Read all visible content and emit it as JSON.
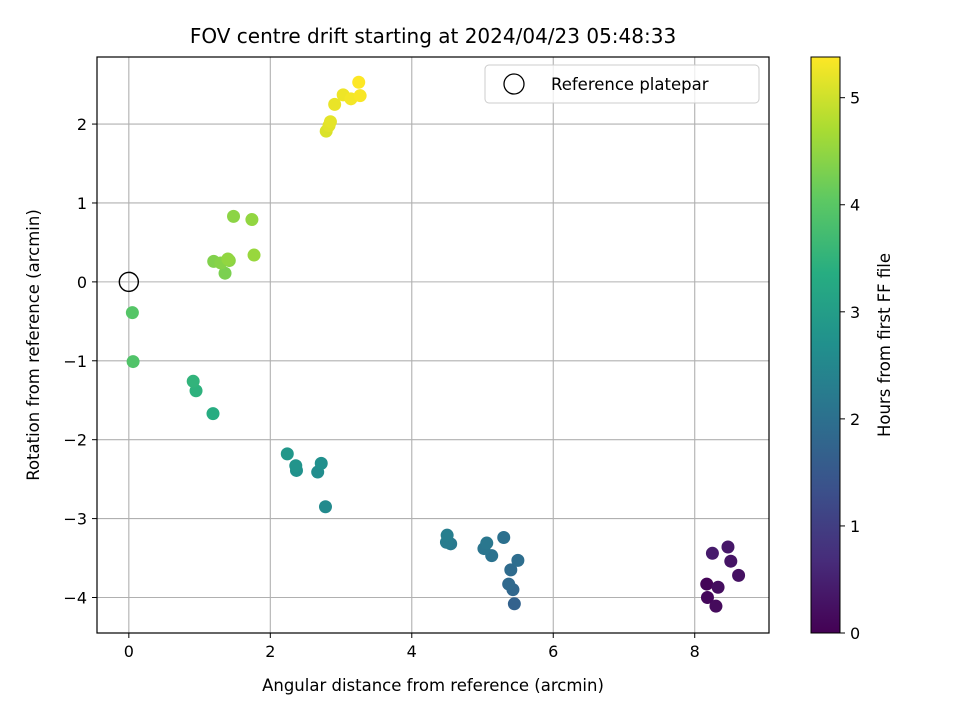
{
  "chart_data": {
    "type": "scatter",
    "title": "FOV centre drift starting at 2024/04/23 05:48:33",
    "xlabel": "Angular distance from reference (arcmin)",
    "ylabel": "Rotation from reference (arcmin)",
    "xlim": [
      -0.45,
      9.05
    ],
    "ylim": [
      -4.45,
      2.85
    ],
    "xticks": [
      0,
      2,
      4,
      6,
      8
    ],
    "yticks": [
      -4,
      -3,
      -2,
      -1,
      0,
      1,
      2
    ],
    "xtick_labels": [
      "0",
      "2",
      "4",
      "6",
      "8"
    ],
    "ytick_labels": [
      "−4",
      "−3",
      "−2",
      "−1",
      "0",
      "1",
      "2"
    ],
    "grid": true,
    "colormap": "viridis",
    "colorbar": {
      "label": "Hours from first FF file",
      "range": [
        0,
        5.38
      ],
      "ticks": [
        0,
        1,
        2,
        3,
        4,
        5
      ],
      "tick_labels": [
        "0",
        "1",
        "2",
        "3",
        "4",
        "5"
      ]
    },
    "legend": {
      "position": "top-right",
      "entries": [
        {
          "label": "Reference platepar",
          "marker": "open-circle"
        }
      ]
    },
    "reference_point": {
      "x": 0,
      "y": 0
    },
    "points": [
      {
        "x": 8.17,
        "y": -3.83,
        "t": 0.05
      },
      {
        "x": 8.18,
        "y": -4.0,
        "t": 0.1
      },
      {
        "x": 8.3,
        "y": -4.11,
        "t": 0.15
      },
      {
        "x": 8.33,
        "y": -3.87,
        "t": 0.2
      },
      {
        "x": 8.62,
        "y": -3.72,
        "t": 0.25
      },
      {
        "x": 8.51,
        "y": -3.54,
        "t": 0.3
      },
      {
        "x": 8.47,
        "y": -3.36,
        "t": 0.35
      },
      {
        "x": 8.25,
        "y": -3.44,
        "t": 0.4
      },
      {
        "x": 5.45,
        "y": -4.08,
        "t": 1.7
      },
      {
        "x": 5.43,
        "y": -3.9,
        "t": 1.8
      },
      {
        "x": 5.37,
        "y": -3.83,
        "t": 1.85
      },
      {
        "x": 5.4,
        "y": -3.65,
        "t": 1.9
      },
      {
        "x": 5.5,
        "y": -3.53,
        "t": 1.95
      },
      {
        "x": 5.3,
        "y": -3.24,
        "t": 2.0
      },
      {
        "x": 5.13,
        "y": -3.47,
        "t": 2.05
      },
      {
        "x": 5.02,
        "y": -3.38,
        "t": 2.1
      },
      {
        "x": 5.06,
        "y": -3.31,
        "t": 2.15
      },
      {
        "x": 4.55,
        "y": -3.32,
        "t": 2.2
      },
      {
        "x": 4.49,
        "y": -3.3,
        "t": 2.25
      },
      {
        "x": 4.5,
        "y": -3.21,
        "t": 2.3
      },
      {
        "x": 2.78,
        "y": -2.85,
        "t": 2.55
      },
      {
        "x": 2.67,
        "y": -2.41,
        "t": 2.62
      },
      {
        "x": 2.72,
        "y": -2.3,
        "t": 2.68
      },
      {
        "x": 2.37,
        "y": -2.39,
        "t": 2.72
      },
      {
        "x": 2.36,
        "y": -2.33,
        "t": 2.78
      },
      {
        "x": 2.24,
        "y": -2.18,
        "t": 2.85
      },
      {
        "x": 1.19,
        "y": -1.67,
        "t": 3.35
      },
      {
        "x": 0.95,
        "y": -1.38,
        "t": 3.45
      },
      {
        "x": 0.91,
        "y": -1.26,
        "t": 3.5
      },
      {
        "x": 0.06,
        "y": -1.01,
        "t": 3.9
      },
      {
        "x": 0.05,
        "y": -0.39,
        "t": 3.95
      },
      {
        "x": 1.36,
        "y": 0.11,
        "t": 4.3
      },
      {
        "x": 1.2,
        "y": 0.26,
        "t": 4.35
      },
      {
        "x": 1.3,
        "y": 0.24,
        "t": 4.4
      },
      {
        "x": 1.42,
        "y": 0.27,
        "t": 4.45
      },
      {
        "x": 1.4,
        "y": 0.29,
        "t": 4.5
      },
      {
        "x": 1.77,
        "y": 0.34,
        "t": 4.55
      },
      {
        "x": 1.48,
        "y": 0.83,
        "t": 4.45
      },
      {
        "x": 1.74,
        "y": 0.79,
        "t": 4.5
      },
      {
        "x": 2.79,
        "y": 1.91,
        "t": 5.1
      },
      {
        "x": 2.83,
        "y": 1.98,
        "t": 5.15
      },
      {
        "x": 2.85,
        "y": 2.03,
        "t": 5.18
      },
      {
        "x": 2.91,
        "y": 2.25,
        "t": 5.22
      },
      {
        "x": 3.03,
        "y": 2.37,
        "t": 5.26
      },
      {
        "x": 3.14,
        "y": 2.32,
        "t": 5.3
      },
      {
        "x": 3.27,
        "y": 2.36,
        "t": 5.34
      },
      {
        "x": 3.25,
        "y": 2.53,
        "t": 5.38
      }
    ]
  }
}
